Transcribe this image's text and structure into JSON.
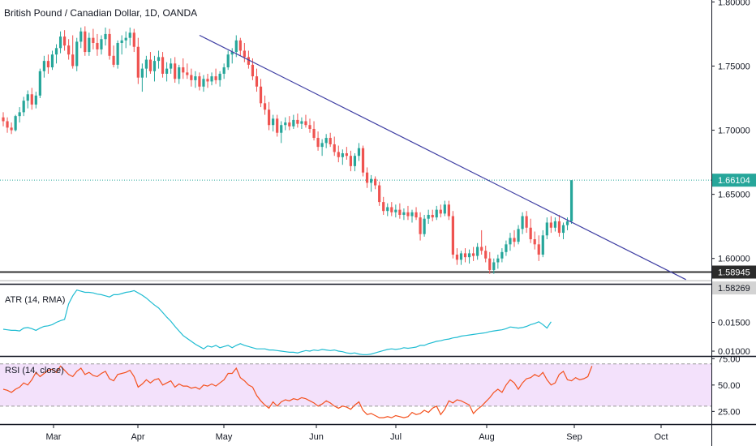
{
  "chart_data": {
    "type": "candlestick",
    "title": "British Pound / Canadian Dollar, 1D, OANDA",
    "price_axis": {
      "ticks": [
        "1.80000",
        "1.75000",
        "1.70000",
        "1.65000",
        "1.60000"
      ],
      "ylim": [
        1.5815,
        1.8015
      ]
    },
    "time_axis": {
      "ticks": [
        "Mar",
        "Apr",
        "May",
        "Jun",
        "Jul",
        "Aug",
        "Sep",
        "Oct"
      ]
    },
    "colors": {
      "up": "#26a69a",
      "down": "#ef5350",
      "trendline": "#3f3fa3",
      "atr": "#1fbcd2",
      "rsi": "#f4511e",
      "rsi_band": "#f3e1fb",
      "last_price": "#26a69a"
    },
    "candles": [
      {
        "o": 1.71,
        "h": 1.714,
        "l": 1.703,
        "c": 1.707
      },
      {
        "o": 1.707,
        "h": 1.71,
        "l": 1.698,
        "c": 1.702
      },
      {
        "o": 1.702,
        "h": 1.706,
        "l": 1.697,
        "c": 1.7
      },
      {
        "o": 1.7,
        "h": 1.712,
        "l": 1.699,
        "c": 1.711
      },
      {
        "o": 1.711,
        "h": 1.718,
        "l": 1.706,
        "c": 1.714
      },
      {
        "o": 1.714,
        "h": 1.726,
        "l": 1.711,
        "c": 1.723
      },
      {
        "o": 1.723,
        "h": 1.731,
        "l": 1.717,
        "c": 1.728
      },
      {
        "o": 1.728,
        "h": 1.733,
        "l": 1.716,
        "c": 1.72
      },
      {
        "o": 1.72,
        "h": 1.73,
        "l": 1.717,
        "c": 1.727
      },
      {
        "o": 1.727,
        "h": 1.748,
        "l": 1.725,
        "c": 1.746
      },
      {
        "o": 1.746,
        "h": 1.758,
        "l": 1.741,
        "c": 1.754
      },
      {
        "o": 1.754,
        "h": 1.759,
        "l": 1.744,
        "c": 1.749
      },
      {
        "o": 1.749,
        "h": 1.762,
        "l": 1.747,
        "c": 1.759
      },
      {
        "o": 1.759,
        "h": 1.767,
        "l": 1.752,
        "c": 1.764
      },
      {
        "o": 1.764,
        "h": 1.777,
        "l": 1.76,
        "c": 1.773
      },
      {
        "o": 1.773,
        "h": 1.778,
        "l": 1.762,
        "c": 1.766
      },
      {
        "o": 1.766,
        "h": 1.771,
        "l": 1.755,
        "c": 1.759
      },
      {
        "o": 1.759,
        "h": 1.774,
        "l": 1.748,
        "c": 1.75
      },
      {
        "o": 1.75,
        "h": 1.772,
        "l": 1.746,
        "c": 1.769
      },
      {
        "o": 1.769,
        "h": 1.78,
        "l": 1.764,
        "c": 1.777
      },
      {
        "o": 1.777,
        "h": 1.781,
        "l": 1.758,
        "c": 1.761
      },
      {
        "o": 1.761,
        "h": 1.776,
        "l": 1.758,
        "c": 1.772
      },
      {
        "o": 1.772,
        "h": 1.779,
        "l": 1.763,
        "c": 1.768
      },
      {
        "o": 1.768,
        "h": 1.775,
        "l": 1.758,
        "c": 1.763
      },
      {
        "o": 1.763,
        "h": 1.774,
        "l": 1.759,
        "c": 1.771
      },
      {
        "o": 1.771,
        "h": 1.78,
        "l": 1.766,
        "c": 1.775
      },
      {
        "o": 1.775,
        "h": 1.779,
        "l": 1.755,
        "c": 1.758
      },
      {
        "o": 1.758,
        "h": 1.766,
        "l": 1.749,
        "c": 1.751
      },
      {
        "o": 1.751,
        "h": 1.77,
        "l": 1.748,
        "c": 1.768
      },
      {
        "o": 1.768,
        "h": 1.774,
        "l": 1.759,
        "c": 1.77
      },
      {
        "o": 1.77,
        "h": 1.777,
        "l": 1.764,
        "c": 1.772
      },
      {
        "o": 1.772,
        "h": 1.78,
        "l": 1.766,
        "c": 1.776
      },
      {
        "o": 1.776,
        "h": 1.779,
        "l": 1.761,
        "c": 1.765
      },
      {
        "o": 1.765,
        "h": 1.772,
        "l": 1.736,
        "c": 1.741
      },
      {
        "o": 1.741,
        "h": 1.752,
        "l": 1.73,
        "c": 1.748
      },
      {
        "o": 1.748,
        "h": 1.758,
        "l": 1.741,
        "c": 1.755
      },
      {
        "o": 1.755,
        "h": 1.761,
        "l": 1.744,
        "c": 1.746
      },
      {
        "o": 1.746,
        "h": 1.758,
        "l": 1.738,
        "c": 1.754
      },
      {
        "o": 1.754,
        "h": 1.762,
        "l": 1.748,
        "c": 1.757
      },
      {
        "o": 1.757,
        "h": 1.761,
        "l": 1.741,
        "c": 1.744
      },
      {
        "o": 1.744,
        "h": 1.753,
        "l": 1.738,
        "c": 1.748
      },
      {
        "o": 1.748,
        "h": 1.756,
        "l": 1.744,
        "c": 1.752
      },
      {
        "o": 1.752,
        "h": 1.757,
        "l": 1.737,
        "c": 1.74
      },
      {
        "o": 1.74,
        "h": 1.751,
        "l": 1.736,
        "c": 1.749
      },
      {
        "o": 1.749,
        "h": 1.756,
        "l": 1.74,
        "c": 1.745
      },
      {
        "o": 1.745,
        "h": 1.752,
        "l": 1.74,
        "c": 1.743
      },
      {
        "o": 1.743,
        "h": 1.748,
        "l": 1.734,
        "c": 1.739
      },
      {
        "o": 1.739,
        "h": 1.746,
        "l": 1.733,
        "c": 1.742
      },
      {
        "o": 1.742,
        "h": 1.745,
        "l": 1.731,
        "c": 1.734
      },
      {
        "o": 1.734,
        "h": 1.743,
        "l": 1.73,
        "c": 1.74
      },
      {
        "o": 1.74,
        "h": 1.744,
        "l": 1.733,
        "c": 1.738
      },
      {
        "o": 1.738,
        "h": 1.745,
        "l": 1.735,
        "c": 1.742
      },
      {
        "o": 1.742,
        "h": 1.748,
        "l": 1.736,
        "c": 1.739
      },
      {
        "o": 1.739,
        "h": 1.746,
        "l": 1.734,
        "c": 1.744
      },
      {
        "o": 1.744,
        "h": 1.752,
        "l": 1.74,
        "c": 1.749
      },
      {
        "o": 1.749,
        "h": 1.762,
        "l": 1.747,
        "c": 1.759
      },
      {
        "o": 1.759,
        "h": 1.764,
        "l": 1.752,
        "c": 1.761
      },
      {
        "o": 1.761,
        "h": 1.774,
        "l": 1.757,
        "c": 1.77
      },
      {
        "o": 1.77,
        "h": 1.772,
        "l": 1.758,
        "c": 1.762
      },
      {
        "o": 1.762,
        "h": 1.768,
        "l": 1.753,
        "c": 1.757
      },
      {
        "o": 1.757,
        "h": 1.762,
        "l": 1.748,
        "c": 1.751
      },
      {
        "o": 1.751,
        "h": 1.756,
        "l": 1.739,
        "c": 1.742
      },
      {
        "o": 1.742,
        "h": 1.748,
        "l": 1.73,
        "c": 1.734
      },
      {
        "o": 1.734,
        "h": 1.74,
        "l": 1.718,
        "c": 1.721
      },
      {
        "o": 1.721,
        "h": 1.727,
        "l": 1.712,
        "c": 1.716
      },
      {
        "o": 1.716,
        "h": 1.722,
        "l": 1.7,
        "c": 1.704
      },
      {
        "o": 1.704,
        "h": 1.712,
        "l": 1.699,
        "c": 1.709
      },
      {
        "o": 1.709,
        "h": 1.712,
        "l": 1.695,
        "c": 1.698
      },
      {
        "o": 1.698,
        "h": 1.707,
        "l": 1.69,
        "c": 1.704
      },
      {
        "o": 1.704,
        "h": 1.71,
        "l": 1.7,
        "c": 1.706
      },
      {
        "o": 1.706,
        "h": 1.711,
        "l": 1.7,
        "c": 1.703
      },
      {
        "o": 1.703,
        "h": 1.712,
        "l": 1.701,
        "c": 1.708
      },
      {
        "o": 1.708,
        "h": 1.713,
        "l": 1.702,
        "c": 1.705
      },
      {
        "o": 1.705,
        "h": 1.71,
        "l": 1.701,
        "c": 1.707
      },
      {
        "o": 1.707,
        "h": 1.712,
        "l": 1.702,
        "c": 1.704
      },
      {
        "o": 1.704,
        "h": 1.709,
        "l": 1.698,
        "c": 1.701
      },
      {
        "o": 1.701,
        "h": 1.707,
        "l": 1.692,
        "c": 1.694
      },
      {
        "o": 1.694,
        "h": 1.699,
        "l": 1.684,
        "c": 1.687
      },
      {
        "o": 1.687,
        "h": 1.693,
        "l": 1.68,
        "c": 1.69
      },
      {
        "o": 1.69,
        "h": 1.697,
        "l": 1.686,
        "c": 1.694
      },
      {
        "o": 1.694,
        "h": 1.698,
        "l": 1.687,
        "c": 1.689
      },
      {
        "o": 1.689,
        "h": 1.695,
        "l": 1.68,
        "c": 1.683
      },
      {
        "o": 1.683,
        "h": 1.688,
        "l": 1.675,
        "c": 1.679
      },
      {
        "o": 1.679,
        "h": 1.685,
        "l": 1.673,
        "c": 1.682
      },
      {
        "o": 1.682,
        "h": 1.687,
        "l": 1.677,
        "c": 1.68
      },
      {
        "o": 1.68,
        "h": 1.684,
        "l": 1.668,
        "c": 1.672
      },
      {
        "o": 1.672,
        "h": 1.682,
        "l": 1.668,
        "c": 1.68
      },
      {
        "o": 1.68,
        "h": 1.69,
        "l": 1.676,
        "c": 1.686
      },
      {
        "o": 1.686,
        "h": 1.688,
        "l": 1.664,
        "c": 1.667
      },
      {
        "o": 1.667,
        "h": 1.671,
        "l": 1.655,
        "c": 1.659
      },
      {
        "o": 1.659,
        "h": 1.665,
        "l": 1.652,
        "c": 1.662
      },
      {
        "o": 1.662,
        "h": 1.664,
        "l": 1.654,
        "c": 1.657
      },
      {
        "o": 1.657,
        "h": 1.66,
        "l": 1.641,
        "c": 1.644
      },
      {
        "o": 1.644,
        "h": 1.648,
        "l": 1.634,
        "c": 1.637
      },
      {
        "o": 1.637,
        "h": 1.643,
        "l": 1.633,
        "c": 1.64
      },
      {
        "o": 1.64,
        "h": 1.644,
        "l": 1.633,
        "c": 1.636
      },
      {
        "o": 1.636,
        "h": 1.642,
        "l": 1.632,
        "c": 1.638
      },
      {
        "o": 1.638,
        "h": 1.643,
        "l": 1.631,
        "c": 1.634
      },
      {
        "o": 1.634,
        "h": 1.639,
        "l": 1.63,
        "c": 1.636
      },
      {
        "o": 1.636,
        "h": 1.641,
        "l": 1.63,
        "c": 1.633
      },
      {
        "o": 1.633,
        "h": 1.638,
        "l": 1.628,
        "c": 1.636
      },
      {
        "o": 1.636,
        "h": 1.64,
        "l": 1.63,
        "c": 1.632
      },
      {
        "o": 1.632,
        "h": 1.636,
        "l": 1.614,
        "c": 1.619
      },
      {
        "o": 1.619,
        "h": 1.634,
        "l": 1.617,
        "c": 1.631
      },
      {
        "o": 1.631,
        "h": 1.638,
        "l": 1.627,
        "c": 1.634
      },
      {
        "o": 1.634,
        "h": 1.638,
        "l": 1.629,
        "c": 1.632
      },
      {
        "o": 1.632,
        "h": 1.641,
        "l": 1.63,
        "c": 1.638
      },
      {
        "o": 1.638,
        "h": 1.642,
        "l": 1.632,
        "c": 1.635
      },
      {
        "o": 1.635,
        "h": 1.645,
        "l": 1.633,
        "c": 1.642
      },
      {
        "o": 1.642,
        "h": 1.645,
        "l": 1.63,
        "c": 1.633
      },
      {
        "o": 1.633,
        "h": 1.637,
        "l": 1.6,
        "c": 1.603
      },
      {
        "o": 1.603,
        "h": 1.608,
        "l": 1.595,
        "c": 1.599
      },
      {
        "o": 1.599,
        "h": 1.606,
        "l": 1.595,
        "c": 1.604
      },
      {
        "o": 1.604,
        "h": 1.608,
        "l": 1.597,
        "c": 1.601
      },
      {
        "o": 1.601,
        "h": 1.607,
        "l": 1.596,
        "c": 1.604
      },
      {
        "o": 1.604,
        "h": 1.609,
        "l": 1.598,
        "c": 1.602
      },
      {
        "o": 1.602,
        "h": 1.612,
        "l": 1.599,
        "c": 1.609
      },
      {
        "o": 1.609,
        "h": 1.622,
        "l": 1.603,
        "c": 1.606
      },
      {
        "o": 1.606,
        "h": 1.61,
        "l": 1.597,
        "c": 1.6
      },
      {
        "o": 1.6,
        "h": 1.605,
        "l": 1.588,
        "c": 1.591
      },
      {
        "o": 1.591,
        "h": 1.6,
        "l": 1.588,
        "c": 1.597
      },
      {
        "o": 1.597,
        "h": 1.603,
        "l": 1.592,
        "c": 1.6
      },
      {
        "o": 1.6,
        "h": 1.608,
        "l": 1.597,
        "c": 1.605
      },
      {
        "o": 1.605,
        "h": 1.614,
        "l": 1.602,
        "c": 1.611
      },
      {
        "o": 1.611,
        "h": 1.62,
        "l": 1.606,
        "c": 1.616
      },
      {
        "o": 1.616,
        "h": 1.622,
        "l": 1.609,
        "c": 1.613
      },
      {
        "o": 1.613,
        "h": 1.626,
        "l": 1.611,
        "c": 1.623
      },
      {
        "o": 1.623,
        "h": 1.636,
        "l": 1.619,
        "c": 1.633
      },
      {
        "o": 1.633,
        "h": 1.637,
        "l": 1.62,
        "c": 1.624
      },
      {
        "o": 1.624,
        "h": 1.631,
        "l": 1.612,
        "c": 1.615
      },
      {
        "o": 1.615,
        "h": 1.621,
        "l": 1.607,
        "c": 1.611
      },
      {
        "o": 1.611,
        "h": 1.618,
        "l": 1.598,
        "c": 1.603
      },
      {
        "o": 1.603,
        "h": 1.622,
        "l": 1.601,
        "c": 1.618
      },
      {
        "o": 1.618,
        "h": 1.632,
        "l": 1.615,
        "c": 1.628
      },
      {
        "o": 1.628,
        "h": 1.633,
        "l": 1.62,
        "c": 1.624
      },
      {
        "o": 1.624,
        "h": 1.632,
        "l": 1.621,
        "c": 1.629
      },
      {
        "o": 1.629,
        "h": 1.634,
        "l": 1.617,
        "c": 1.62
      },
      {
        "o": 1.62,
        "h": 1.628,
        "l": 1.615,
        "c": 1.626
      },
      {
        "o": 1.626,
        "h": 1.632,
        "l": 1.622,
        "c": 1.629
      },
      {
        "o": 1.629,
        "h": 1.661,
        "l": 1.627,
        "c": 1.661
      }
    ],
    "trendline": {
      "x1_index": 48,
      "y1": 1.774,
      "x2_index": 167,
      "y2": 1.5835
    },
    "horizontal_levels": [
      {
        "label": "1.58945",
        "value": 1.5894
      },
      {
        "label": "1.58269",
        "value": 1.5827
      }
    ],
    "last_price_label": "1.66104",
    "last_price_value": 1.66104,
    "atr": {
      "label": "ATR (14, RMA)",
      "ticks": [
        "0.01500",
        "0.01000"
      ],
      "ylim": [
        0.0093,
        0.0214
      ],
      "values": [
        0.0138,
        0.0137,
        0.0136,
        0.0136,
        0.0135,
        0.014,
        0.0141,
        0.0139,
        0.0136,
        0.014,
        0.0143,
        0.0144,
        0.0146,
        0.015,
        0.0153,
        0.0155,
        0.0182,
        0.0196,
        0.0206,
        0.0204,
        0.0202,
        0.0202,
        0.0201,
        0.0199,
        0.0198,
        0.0196,
        0.0194,
        0.0198,
        0.0198,
        0.02,
        0.0202,
        0.0203,
        0.0205,
        0.0201,
        0.0197,
        0.0192,
        0.0186,
        0.018,
        0.0175,
        0.0167,
        0.0159,
        0.0152,
        0.0143,
        0.0135,
        0.0127,
        0.0122,
        0.0117,
        0.0112,
        0.0108,
        0.0104,
        0.0109,
        0.0107,
        0.011,
        0.0106,
        0.0108,
        0.011,
        0.0106,
        0.011,
        0.0113,
        0.011,
        0.0108,
        0.0106,
        0.0104,
        0.0104,
        0.0104,
        0.0102,
        0.0102,
        0.0101,
        0.01,
        0.0099,
        0.0098,
        0.0098,
        0.0097,
        0.0099,
        0.0101,
        0.01,
        0.0102,
        0.0101,
        0.0103,
        0.0102,
        0.0101,
        0.0102,
        0.01,
        0.0099,
        0.0097,
        0.0096,
        0.0097,
        0.0095,
        0.0094,
        0.0094,
        0.0095,
        0.0097,
        0.0099,
        0.0101,
        0.0103,
        0.0104,
        0.0103,
        0.0104,
        0.0106,
        0.0105,
        0.0106,
        0.0107,
        0.011,
        0.011,
        0.0113,
        0.0115,
        0.0117,
        0.0118,
        0.012,
        0.0121,
        0.0123,
        0.0124,
        0.0126,
        0.0127,
        0.0128,
        0.0129,
        0.013,
        0.0131,
        0.0132,
        0.0134,
        0.0135,
        0.0136,
        0.0137,
        0.0139,
        0.0142,
        0.0141,
        0.014,
        0.0141,
        0.0143,
        0.0146,
        0.0148,
        0.0151,
        0.0146,
        0.014,
        0.0151
      ]
    },
    "rsi": {
      "label": "RSI (14, close)",
      "ticks": [
        "75.00",
        "50.00",
        "25.00"
      ],
      "ylim": [
        14.5,
        76.0
      ],
      "band": [
        30,
        70
      ],
      "values": [
        46,
        45,
        43,
        46,
        48,
        52,
        50,
        55,
        62,
        58,
        61,
        64,
        65,
        62,
        68,
        64,
        60,
        58,
        63,
        66,
        60,
        62,
        59,
        58,
        61,
        63,
        56,
        54,
        60,
        61,
        62,
        64,
        58,
        48,
        51,
        55,
        52,
        55,
        56,
        50,
        52,
        54,
        48,
        51,
        49,
        49,
        47,
        48,
        46,
        50,
        49,
        51,
        49,
        52,
        55,
        61,
        61,
        66,
        57,
        54,
        50,
        48,
        40,
        35,
        31,
        28,
        34,
        30,
        34,
        36,
        35,
        37,
        36,
        38,
        37,
        35,
        33,
        30,
        32,
        35,
        33,
        30,
        28,
        30,
        29,
        27,
        31,
        34,
        26,
        22,
        23,
        21,
        19,
        19,
        20,
        19,
        21,
        20,
        19,
        20,
        24,
        22,
        23,
        26,
        24,
        28,
        30,
        22,
        27,
        35,
        33,
        36,
        35,
        33,
        31,
        23,
        27,
        30,
        34,
        38,
        43,
        46,
        43,
        50,
        55,
        52,
        46,
        52,
        56,
        57,
        60,
        58,
        62,
        55,
        50,
        52,
        60,
        63,
        55,
        54,
        57,
        55,
        56,
        58,
        68
      ]
    }
  }
}
